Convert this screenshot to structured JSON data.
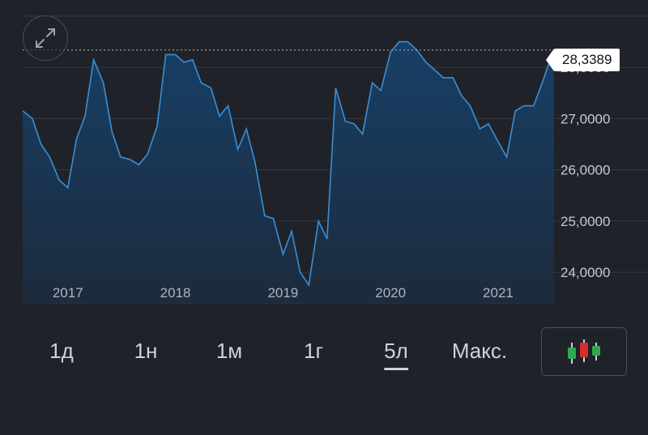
{
  "current_price": "28,3389",
  "tabs": [
    {
      "label": "1д",
      "active": false
    },
    {
      "label": "1н",
      "active": false
    },
    {
      "label": "1м",
      "active": false
    },
    {
      "label": "1г",
      "active": false
    },
    {
      "label": "5л",
      "active": true
    },
    {
      "label": "Макс.",
      "active": false
    }
  ],
  "icons": {
    "expand": "expand-icon",
    "candlestick": "candlestick-icon"
  },
  "colors": {
    "background": "#1f2329",
    "line": "#3a8fd6",
    "candle_green": "#2fa84f",
    "candle_red": "#d32f2f"
  },
  "chart_data": {
    "type": "area",
    "y_tick_labels": [
      "28,0000",
      "27,0000",
      "26,0000",
      "25,0000",
      "24,0000"
    ],
    "y_ticks": [
      28,
      27,
      26,
      25,
      24
    ],
    "x_tick_labels": [
      "2017",
      "2018",
      "2019",
      "2020",
      "2021"
    ],
    "x_ticks": [
      2017,
      2018,
      2019,
      2020,
      2021
    ],
    "ylim": [
      23.4,
      29.0
    ],
    "xlim": [
      2016.58,
      2021.52
    ],
    "last_value": 28.3389,
    "grid": true,
    "x": [
      2016.58,
      2016.67,
      2016.75,
      2016.83,
      2016.92,
      2017.0,
      2017.08,
      2017.16,
      2017.24,
      2017.33,
      2017.41,
      2017.49,
      2017.58,
      2017.66,
      2017.74,
      2017.83,
      2017.91,
      2018.0,
      2018.08,
      2018.16,
      2018.24,
      2018.33,
      2018.41,
      2018.49,
      2018.58,
      2018.66,
      2018.74,
      2018.83,
      2018.91,
      2019.0,
      2019.08,
      2019.16,
      2019.24,
      2019.33,
      2019.41,
      2019.49,
      2019.58,
      2019.66,
      2019.74,
      2019.83,
      2019.91,
      2020.0,
      2020.08,
      2020.16,
      2020.24,
      2020.33,
      2020.41,
      2020.49,
      2020.58,
      2020.66,
      2020.74,
      2020.83,
      2020.91,
      2021.0,
      2021.08,
      2021.16,
      2021.24,
      2021.33,
      2021.41,
      2021.46,
      2021.52
    ],
    "values": [
      27.15,
      27.0,
      26.5,
      26.25,
      25.8,
      25.65,
      26.6,
      27.05,
      28.15,
      27.7,
      26.75,
      26.25,
      26.2,
      26.1,
      26.3,
      26.85,
      28.25,
      28.25,
      28.1,
      28.15,
      27.7,
      27.6,
      27.05,
      27.25,
      26.4,
      26.8,
      26.15,
      25.1,
      25.05,
      24.35,
      24.8,
      24.0,
      23.75,
      25.0,
      24.65,
      27.6,
      26.95,
      26.9,
      26.7,
      27.7,
      27.55,
      28.3,
      28.5,
      28.5,
      28.35,
      28.1,
      27.95,
      27.8,
      27.8,
      27.45,
      27.25,
      26.8,
      26.9,
      26.55,
      26.25,
      27.15,
      27.25,
      27.25,
      27.7,
      28.0,
      28.3389
    ]
  }
}
